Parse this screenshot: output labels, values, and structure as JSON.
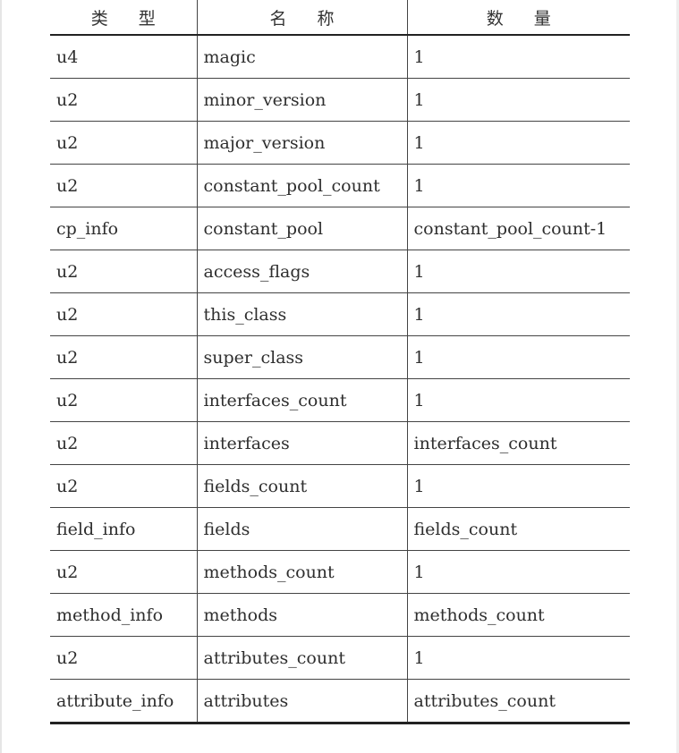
{
  "table": {
    "headers": [
      "类 型",
      "名 称",
      "数 量"
    ],
    "rows": [
      [
        "u4",
        "magic",
        "1"
      ],
      [
        "u2",
        "minor_version",
        "1"
      ],
      [
        "u2",
        "major_version",
        "1"
      ],
      [
        "u2",
        "constant_pool_count",
        "1"
      ],
      [
        "cp_info",
        "constant_pool",
        "constant_pool_count-1"
      ],
      [
        "u2",
        "access_flags",
        "1"
      ],
      [
        "u2",
        "this_class",
        "1"
      ],
      [
        "u2",
        "super_class",
        "1"
      ],
      [
        "u2",
        "interfaces_count",
        "1"
      ],
      [
        "u2",
        "interfaces",
        "interfaces_count"
      ],
      [
        "u2",
        "fields_count",
        "1"
      ],
      [
        "field_info",
        "fields",
        "fields_count"
      ],
      [
        "u2",
        "methods_count",
        "1"
      ],
      [
        "method_info",
        "methods",
        "methods_count"
      ],
      [
        "u2",
        "attributes_count",
        "1"
      ],
      [
        "attribute_info",
        "attributes",
        "attributes_count"
      ]
    ]
  }
}
